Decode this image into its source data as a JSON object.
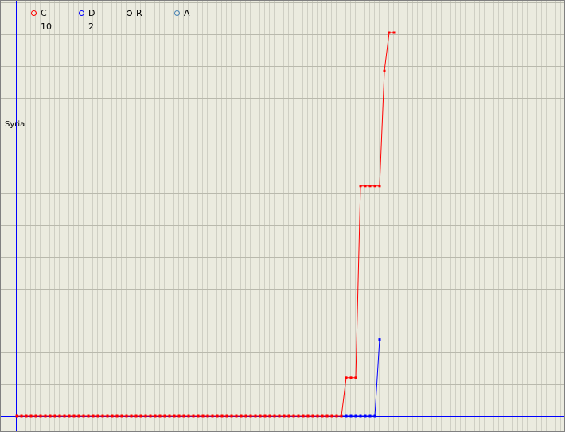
{
  "legend": {
    "items": [
      {
        "key": "C",
        "color": "#ff0000",
        "count": "10"
      },
      {
        "key": "D",
        "color": "#0000ff",
        "count": "2"
      },
      {
        "key": "R",
        "color": "#000000",
        "count": ""
      },
      {
        "key": "A",
        "color": "#4682b4",
        "count": ""
      }
    ]
  },
  "chart_data": {
    "type": "line",
    "ylabel": "Syria",
    "grid": true,
    "x_count": 80,
    "ylim": [
      0,
      10
    ],
    "series": [
      {
        "name": "C",
        "color": "#ff0000",
        "values": [
          0,
          0,
          0,
          0,
          0,
          0,
          0,
          0,
          0,
          0,
          0,
          0,
          0,
          0,
          0,
          0,
          0,
          0,
          0,
          0,
          0,
          0,
          0,
          0,
          0,
          0,
          0,
          0,
          0,
          0,
          0,
          0,
          0,
          0,
          0,
          0,
          0,
          0,
          0,
          0,
          0,
          0,
          0,
          0,
          0,
          0,
          0,
          0,
          0,
          0,
          0,
          0,
          0,
          0,
          0,
          0,
          0,
          0,
          0,
          0,
          0,
          0,
          0,
          0,
          0,
          0,
          0,
          0,
          0,
          1,
          1,
          1,
          6,
          6,
          6,
          6,
          6,
          9,
          10,
          10
        ]
      },
      {
        "name": "D",
        "color": "#0000ff",
        "values": [
          null,
          null,
          null,
          null,
          null,
          null,
          null,
          null,
          null,
          null,
          null,
          null,
          null,
          null,
          null,
          null,
          null,
          null,
          null,
          null,
          null,
          null,
          null,
          null,
          null,
          null,
          null,
          null,
          null,
          null,
          null,
          null,
          null,
          null,
          null,
          null,
          null,
          null,
          null,
          null,
          null,
          null,
          null,
          null,
          null,
          null,
          null,
          null,
          null,
          null,
          null,
          null,
          null,
          null,
          null,
          null,
          null,
          null,
          null,
          null,
          null,
          null,
          null,
          null,
          null,
          null,
          null,
          null,
          0,
          0,
          0,
          0,
          0,
          0,
          0,
          0,
          2,
          null,
          null,
          null
        ]
      }
    ]
  }
}
